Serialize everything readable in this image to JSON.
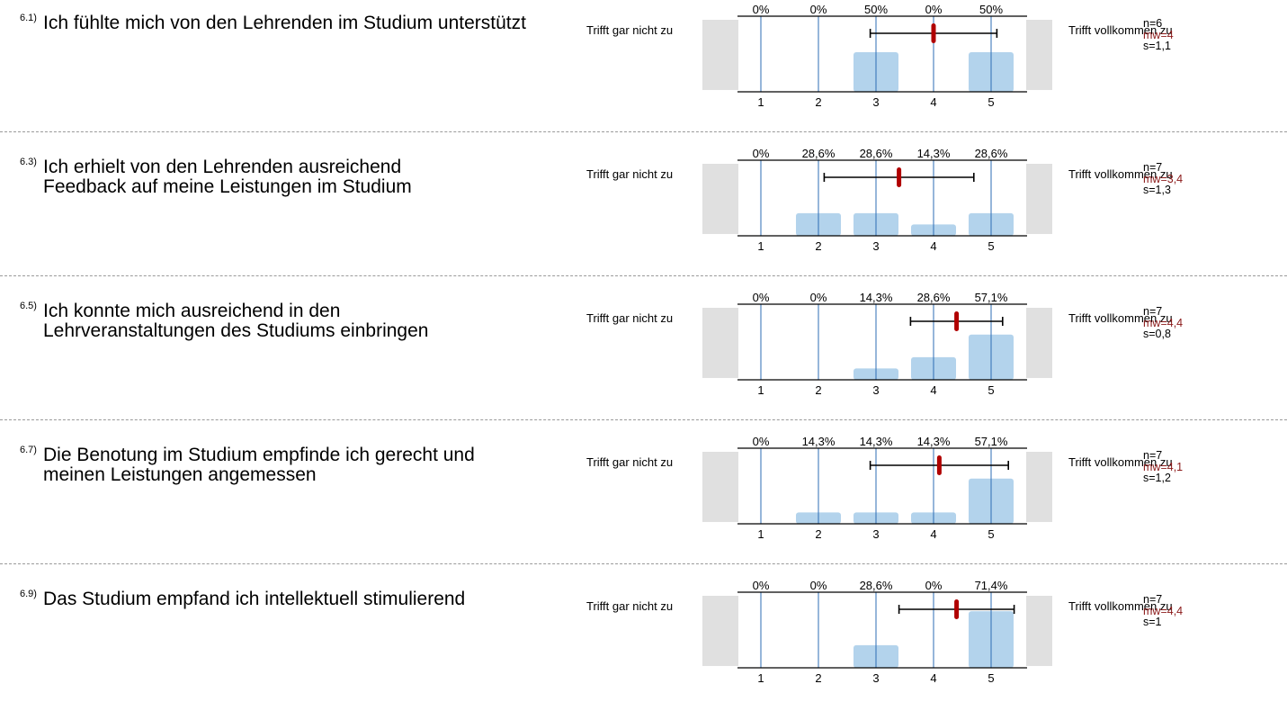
{
  "scale": {
    "left_label": "Trifft gar nicht zu",
    "right_label": "Trifft vollkommen zu",
    "ticks": [
      "1",
      "2",
      "3",
      "4",
      "5"
    ]
  },
  "colors": {
    "bar": "#b3d3ec",
    "gridline": "#2e6db5",
    "mean": "#b00000",
    "mean_text": "#8b1a1a",
    "side_box": "#e0e0e0",
    "separator": "#9a9a9a"
  },
  "chart_data": [
    {
      "type": "bar",
      "id": "6.1)",
      "title": "Ich fühlte mich von den Lehrenden im Studium unterstützt",
      "categories": [
        "1",
        "2",
        "3",
        "4",
        "5"
      ],
      "values": [
        0,
        0,
        50,
        0,
        50
      ],
      "value_labels": [
        "0%",
        "0%",
        "50%",
        "0%",
        "50%"
      ],
      "n": "n=6",
      "mw": "mw=4",
      "s": "s=1,1",
      "mean": 4,
      "sd": 1.1
    },
    {
      "type": "bar",
      "id": "6.3)",
      "title": "Ich erhielt von den Lehrenden ausreichend\nFeedback auf meine Leistungen im Studium",
      "categories": [
        "1",
        "2",
        "3",
        "4",
        "5"
      ],
      "values": [
        0,
        28.6,
        28.6,
        14.3,
        28.6
      ],
      "value_labels": [
        "0%",
        "28,6%",
        "28,6%",
        "14,3%",
        "28,6%"
      ],
      "n": "n=7",
      "mw": "mw=3,4",
      "s": "s=1,3",
      "mean": 3.4,
      "sd": 1.3
    },
    {
      "type": "bar",
      "id": "6.5)",
      "title": "Ich konnte mich ausreichend in den\nLehrveranstaltungen des Studiums einbringen",
      "categories": [
        "1",
        "2",
        "3",
        "4",
        "5"
      ],
      "values": [
        0,
        0,
        14.3,
        28.6,
        57.1
      ],
      "value_labels": [
        "0%",
        "0%",
        "14,3%",
        "28,6%",
        "57,1%"
      ],
      "n": "n=7",
      "mw": "mw=4,4",
      "s": "s=0,8",
      "mean": 4.4,
      "sd": 0.8
    },
    {
      "type": "bar",
      "id": "6.7)",
      "title": "Die Benotung im Studium empfinde ich gerecht und\nmeinen Leistungen angemessen",
      "categories": [
        "1",
        "2",
        "3",
        "4",
        "5"
      ],
      "values": [
        0,
        14.3,
        14.3,
        14.3,
        57.1
      ],
      "value_labels": [
        "0%",
        "14,3%",
        "14,3%",
        "14,3%",
        "57,1%"
      ],
      "n": "n=7",
      "mw": "mw=4,1",
      "s": "s=1,2",
      "mean": 4.1,
      "sd": 1.2
    },
    {
      "type": "bar",
      "id": "6.9)",
      "title": "Das Studium empfand ich intellektuell stimulierend",
      "categories": [
        "1",
        "2",
        "3",
        "4",
        "5"
      ],
      "values": [
        0,
        0,
        28.6,
        0,
        71.4
      ],
      "value_labels": [
        "0%",
        "0%",
        "28,6%",
        "0%",
        "71,4%"
      ],
      "n": "n=7",
      "mw": "mw=4,4",
      "s": "s=1",
      "mean": 4.4,
      "sd": 1
    }
  ]
}
